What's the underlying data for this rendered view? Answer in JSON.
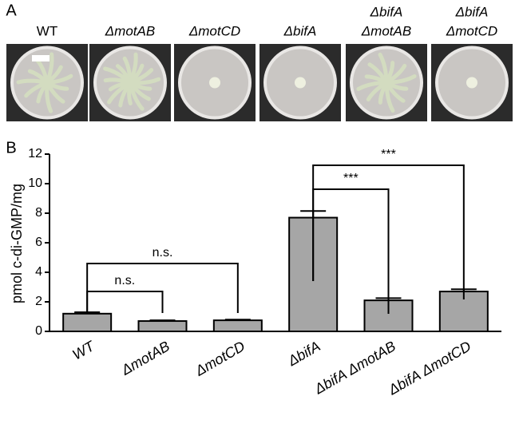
{
  "panel_a": {
    "label": "A",
    "strains": [
      [
        "WT"
      ],
      [
        "ΔmotAB"
      ],
      [
        "ΔmotCD"
      ],
      [
        "ΔbifA"
      ],
      [
        "ΔbifA",
        "ΔmotAB"
      ],
      [
        "ΔbifA",
        "ΔmotCD"
      ]
    ]
  },
  "chart_data": {
    "type": "bar",
    "panel_label": "B",
    "y_label": "pmol c-di-GMP/mg",
    "categories": [
      "WT",
      "ΔmotAB",
      "ΔmotCD",
      "ΔbifA",
      "ΔbifA ΔmotAB",
      "ΔbifA ΔmotCD"
    ],
    "values": [
      1.2,
      0.7,
      0.75,
      7.7,
      2.1,
      2.7
    ],
    "errors": [
      0.1,
      0.05,
      0.05,
      0.45,
      0.15,
      0.15
    ],
    "color": "#a6a6a6",
    "ylim": [
      0,
      12
    ],
    "yticks": [
      0,
      2,
      4,
      6,
      8,
      10,
      12
    ],
    "annotations": [
      "n.s.",
      "n.s.",
      "***",
      "***"
    ]
  }
}
